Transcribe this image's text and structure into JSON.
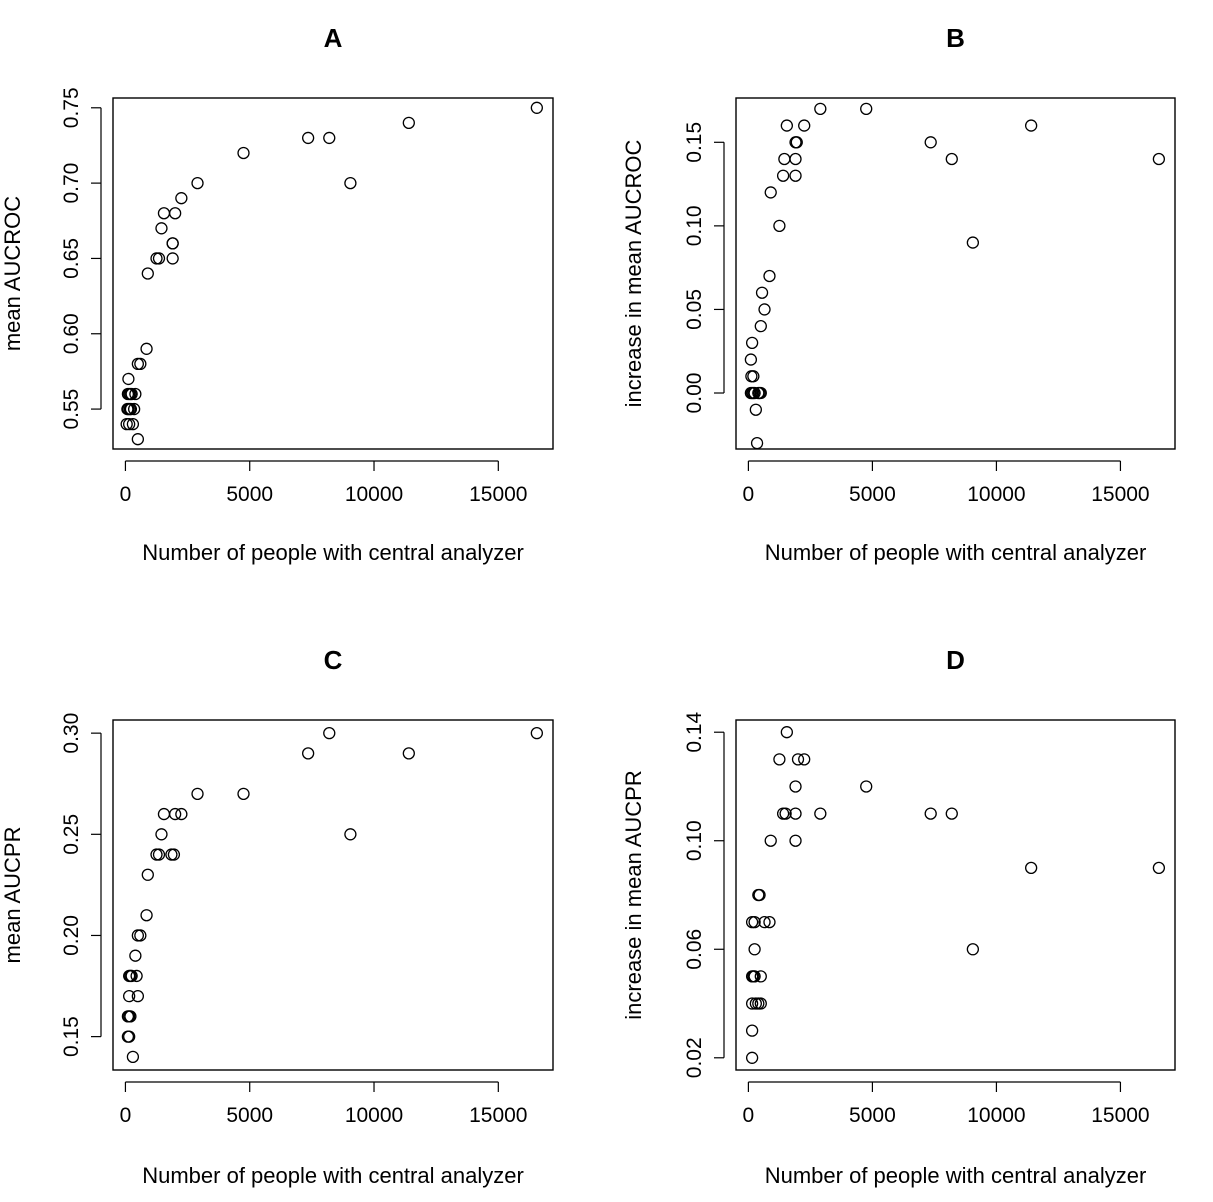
{
  "chart_data": [
    {
      "type": "scatter",
      "title": "A",
      "xlabel": "Number of people with central analyzer",
      "ylabel": "mean AUCROC",
      "xlim": [
        -500,
        17200
      ],
      "ylim": [
        0.5235,
        0.7565
      ],
      "xticks": [
        0,
        5000,
        10000,
        15000
      ],
      "yticks": [
        0.55,
        0.6,
        0.65,
        0.7,
        0.75
      ],
      "ytick_labels": [
        "0.55",
        "0.60",
        "0.65",
        "0.70",
        "0.75"
      ],
      "points": [
        [
          120,
          0.57
        ],
        [
          100,
          0.56
        ],
        [
          150,
          0.56
        ],
        [
          200,
          0.56
        ],
        [
          250,
          0.56
        ],
        [
          80,
          0.55
        ],
        [
          120,
          0.55
        ],
        [
          180,
          0.55
        ],
        [
          220,
          0.55
        ],
        [
          350,
          0.55
        ],
        [
          50,
          0.54
        ],
        [
          150,
          0.54
        ],
        [
          300,
          0.54
        ],
        [
          400,
          0.56
        ],
        [
          500,
          0.53
        ],
        [
          500,
          0.58
        ],
        [
          600,
          0.58
        ],
        [
          850,
          0.59
        ],
        [
          900,
          0.64
        ],
        [
          1250,
          0.65
        ],
        [
          1350,
          0.65
        ],
        [
          1450,
          0.67
        ],
        [
          1550,
          0.68
        ],
        [
          1900,
          0.66
        ],
        [
          1900,
          0.66
        ],
        [
          1900,
          0.65
        ],
        [
          2000,
          0.68
        ],
        [
          2250,
          0.69
        ],
        [
          2900,
          0.7
        ],
        [
          4750,
          0.72
        ],
        [
          7350,
          0.73
        ],
        [
          8200,
          0.73
        ],
        [
          9050,
          0.7
        ],
        [
          11400,
          0.74
        ],
        [
          16550,
          0.75
        ]
      ]
    },
    {
      "type": "scatter",
      "title": "B",
      "xlabel": "Number of people with central analyzer",
      "ylabel": "increase in mean AUCROC",
      "xlim": [
        -500,
        17200
      ],
      "ylim": [
        -0.0335,
        0.1765
      ],
      "xticks": [
        0,
        5000,
        10000,
        15000
      ],
      "yticks": [
        0.0,
        0.05,
        0.1,
        0.15
      ],
      "ytick_labels": [
        "0.00",
        "0.05",
        "0.10",
        "0.15"
      ],
      "points": [
        [
          150,
          0.03
        ],
        [
          100,
          0.02
        ],
        [
          120,
          0.01
        ],
        [
          200,
          0.01
        ],
        [
          100,
          0.0
        ],
        [
          150,
          0.0
        ],
        [
          200,
          0.0
        ],
        [
          250,
          0.0
        ],
        [
          400,
          0.0
        ],
        [
          450,
          0.0
        ],
        [
          500,
          0.0
        ],
        [
          300,
          -0.01
        ],
        [
          350,
          -0.03
        ],
        [
          500,
          0.04
        ],
        [
          550,
          0.06
        ],
        [
          650,
          0.05
        ],
        [
          850,
          0.07
        ],
        [
          900,
          0.12
        ],
        [
          1250,
          0.1
        ],
        [
          1400,
          0.13
        ],
        [
          1450,
          0.14
        ],
        [
          1550,
          0.16
        ],
        [
          1900,
          0.15
        ],
        [
          1950,
          0.15
        ],
        [
          1900,
          0.14
        ],
        [
          1900,
          0.13
        ],
        [
          2250,
          0.16
        ],
        [
          2900,
          0.17
        ],
        [
          4750,
          0.17
        ],
        [
          7350,
          0.15
        ],
        [
          8200,
          0.14
        ],
        [
          9050,
          0.09
        ],
        [
          11400,
          0.16
        ],
        [
          16550,
          0.14
        ]
      ]
    },
    {
      "type": "scatter",
      "title": "C",
      "xlabel": "Number of people with central analyzer",
      "ylabel": "mean AUCPR",
      "xlim": [
        -500,
        17200
      ],
      "ylim": [
        0.1335,
        0.3065
      ],
      "xticks": [
        0,
        5000,
        10000,
        15000
      ],
      "yticks": [
        0.15,
        0.2,
        0.25,
        0.3
      ],
      "ytick_labels": [
        "0.15",
        "0.20",
        "0.25",
        "0.30"
      ],
      "points": [
        [
          150,
          0.18
        ],
        [
          200,
          0.18
        ],
        [
          250,
          0.18
        ],
        [
          450,
          0.18
        ],
        [
          150,
          0.17
        ],
        [
          500,
          0.17
        ],
        [
          100,
          0.16
        ],
        [
          150,
          0.16
        ],
        [
          200,
          0.16
        ],
        [
          100,
          0.15
        ],
        [
          150,
          0.15
        ],
        [
          300,
          0.14
        ],
        [
          400,
          0.19
        ],
        [
          500,
          0.2
        ],
        [
          600,
          0.2
        ],
        [
          850,
          0.21
        ],
        [
          900,
          0.23
        ],
        [
          1250,
          0.24
        ],
        [
          1350,
          0.24
        ],
        [
          1450,
          0.25
        ],
        [
          1550,
          0.26
        ],
        [
          1850,
          0.24
        ],
        [
          1950,
          0.24
        ],
        [
          2000,
          0.26
        ],
        [
          2250,
          0.26
        ],
        [
          2900,
          0.27
        ],
        [
          4750,
          0.27
        ],
        [
          7350,
          0.29
        ],
        [
          8200,
          0.3
        ],
        [
          9050,
          0.25
        ],
        [
          11400,
          0.29
        ],
        [
          16550,
          0.3
        ]
      ]
    },
    {
      "type": "scatter",
      "title": "D",
      "xlabel": "Number of people with central analyzer",
      "ylabel": "increase in mean AUCPR",
      "xlim": [
        -500,
        17200
      ],
      "ylim": [
        0.0155,
        0.1445
      ],
      "xticks": [
        0,
        5000,
        10000,
        15000
      ],
      "yticks": [
        0.02,
        0.06,
        0.1,
        0.14
      ],
      "ytick_labels": [
        "0.02",
        "0.06",
        "0.10",
        "0.14"
      ],
      "points": [
        [
          150,
          0.07
        ],
        [
          250,
          0.07
        ],
        [
          250,
          0.06
        ],
        [
          150,
          0.05
        ],
        [
          200,
          0.05
        ],
        [
          250,
          0.05
        ],
        [
          500,
          0.05
        ],
        [
          150,
          0.04
        ],
        [
          300,
          0.04
        ],
        [
          400,
          0.04
        ],
        [
          500,
          0.04
        ],
        [
          150,
          0.03
        ],
        [
          150,
          0.02
        ],
        [
          400,
          0.08
        ],
        [
          450,
          0.08
        ],
        [
          650,
          0.07
        ],
        [
          850,
          0.07
        ],
        [
          900,
          0.1
        ],
        [
          1250,
          0.13
        ],
        [
          1400,
          0.11
        ],
        [
          1500,
          0.11
        ],
        [
          1550,
          0.14
        ],
        [
          1900,
          0.12
        ],
        [
          1900,
          0.11
        ],
        [
          1900,
          0.1
        ],
        [
          2000,
          0.13
        ],
        [
          2250,
          0.13
        ],
        [
          2900,
          0.11
        ],
        [
          4750,
          0.12
        ],
        [
          7350,
          0.11
        ],
        [
          8200,
          0.11
        ],
        [
          9050,
          0.06
        ],
        [
          11400,
          0.09
        ],
        [
          16550,
          0.09
        ]
      ]
    }
  ]
}
